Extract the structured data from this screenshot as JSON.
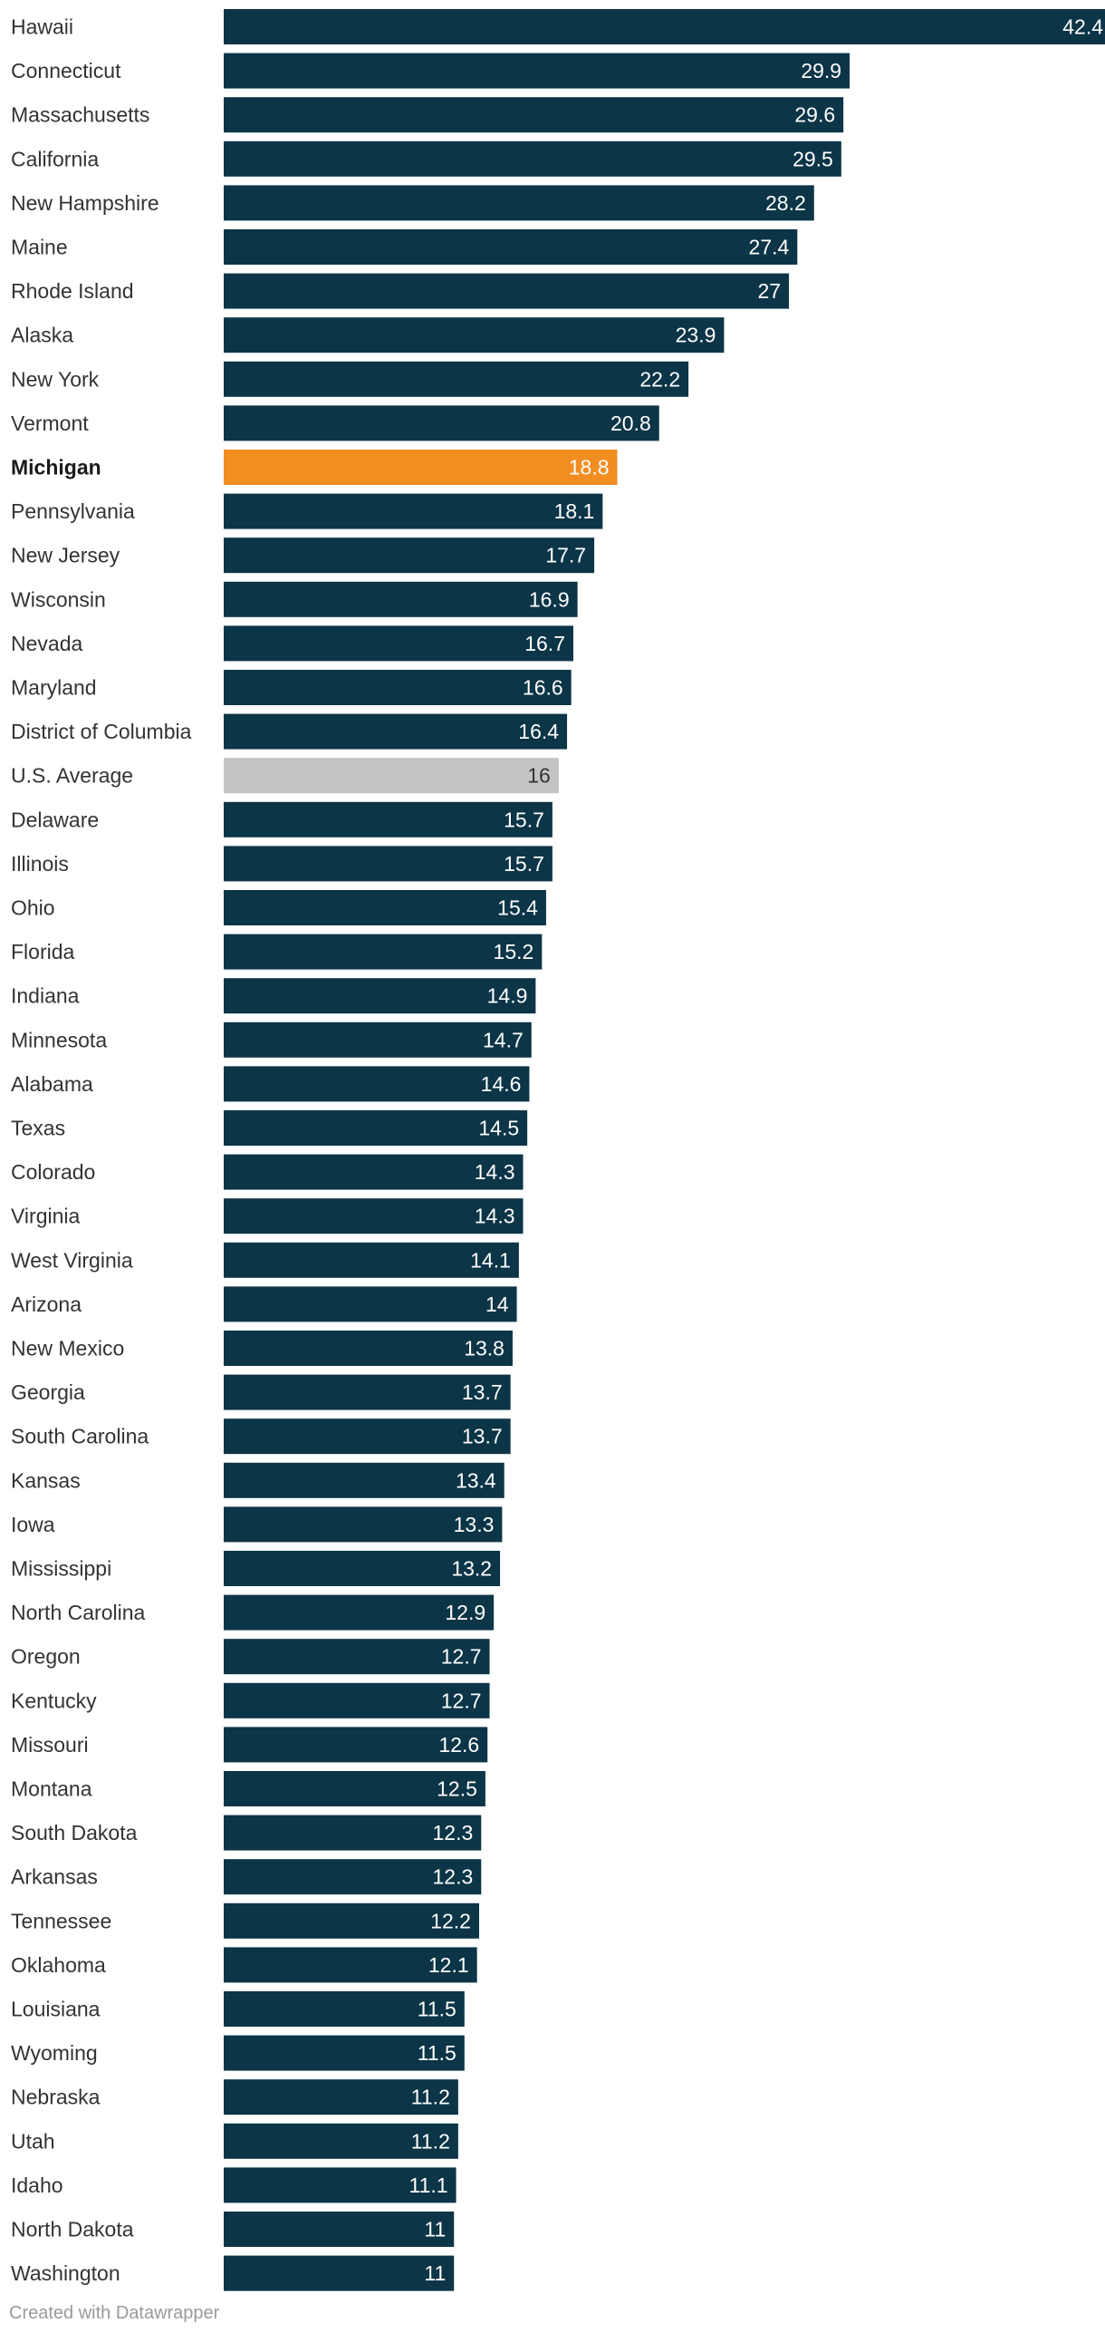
{
  "chart_data": {
    "type": "bar",
    "orientation": "horizontal",
    "title": "",
    "xlabel": "",
    "ylabel": "",
    "xlim": [
      0,
      42.4
    ],
    "grid": false,
    "legend": "none",
    "colors": {
      "default": "#0c3547",
      "highlight": "#f28d22",
      "average": "#c4c4c4",
      "label_on_dark": "#ffffff",
      "label_on_light": "#333333"
    },
    "highlight": "Michigan",
    "average": "U.S. Average",
    "categories": [
      "Hawaii",
      "Connecticut",
      "Massachusetts",
      "California",
      "New Hampshire",
      "Maine",
      "Rhode Island",
      "Alaska",
      "New York",
      "Vermont",
      "Michigan",
      "Pennsylvania",
      "New Jersey",
      "Wisconsin",
      "Nevada",
      "Maryland",
      "District of Columbia",
      "U.S. Average",
      "Delaware",
      "Illinois",
      "Ohio",
      "Florida",
      "Indiana",
      "Minnesota",
      "Alabama",
      "Texas",
      "Colorado",
      "Virginia",
      "West Virginia",
      "Arizona",
      "New Mexico",
      "Georgia",
      "South Carolina",
      "Kansas",
      "Iowa",
      "Mississippi",
      "North Carolina",
      "Oregon",
      "Kentucky",
      "Missouri",
      "Montana",
      "South Dakota",
      "Arkansas",
      "Tennessee",
      "Oklahoma",
      "Louisiana",
      "Wyoming",
      "Nebraska",
      "Utah",
      "Idaho",
      "North Dakota",
      "Washington"
    ],
    "values": [
      42.4,
      29.9,
      29.6,
      29.5,
      28.2,
      27.4,
      27,
      23.9,
      22.2,
      20.8,
      18.8,
      18.1,
      17.7,
      16.9,
      16.7,
      16.6,
      16.4,
      16,
      15.7,
      15.7,
      15.4,
      15.2,
      14.9,
      14.7,
      14.6,
      14.5,
      14.3,
      14.3,
      14.1,
      14,
      13.8,
      13.7,
      13.7,
      13.4,
      13.3,
      13.2,
      12.9,
      12.7,
      12.7,
      12.6,
      12.5,
      12.3,
      12.3,
      12.2,
      12.1,
      11.5,
      11.5,
      11.2,
      11.2,
      11.1,
      11,
      11
    ]
  },
  "footer": {
    "credit": "Created with Datawrapper"
  }
}
